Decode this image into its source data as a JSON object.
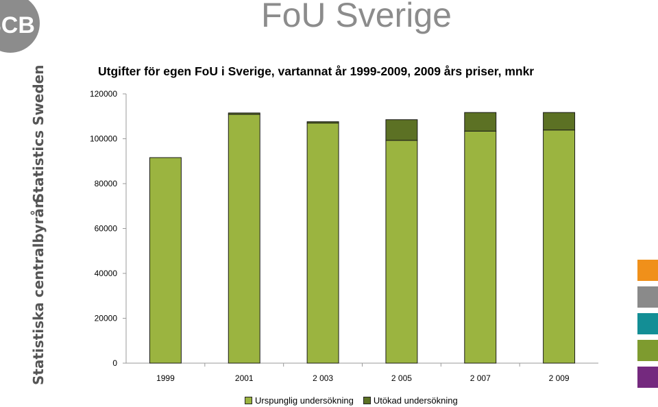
{
  "header": {
    "title": "FoU Sverige",
    "logo_text": "SCB"
  },
  "side": {
    "top_label": "Statistics Sweden",
    "bottom_label": "Statistiska centralbyrån"
  },
  "swatches": [
    "#f0901a",
    "#8a8a8a",
    "#138e95",
    "#7e9b2f",
    "#74297e"
  ],
  "chart_data": {
    "type": "bar",
    "stacked": true,
    "title": "Utgifter för egen FoU i Sverige, vartannat år 1999-2009, 2009 års priser, mnkr",
    "categories": [
      "1999",
      "2001",
      "2 003",
      "2 005",
      "2 007",
      "2 009"
    ],
    "series": [
      {
        "name": "Urspunglig undersökning",
        "color": "#9bb440",
        "values": [
          91600,
          110900,
          107000,
          99300,
          103400,
          103900
        ]
      },
      {
        "name": "Utökad undersökning",
        "color": "#5c7124",
        "values": [
          0,
          600,
          600,
          9200,
          8300,
          7800
        ]
      }
    ],
    "ylim": [
      0,
      120000
    ],
    "yticks": [
      0,
      20000,
      40000,
      60000,
      80000,
      100000,
      120000
    ],
    "grid": false,
    "legend_position": "bottom"
  }
}
